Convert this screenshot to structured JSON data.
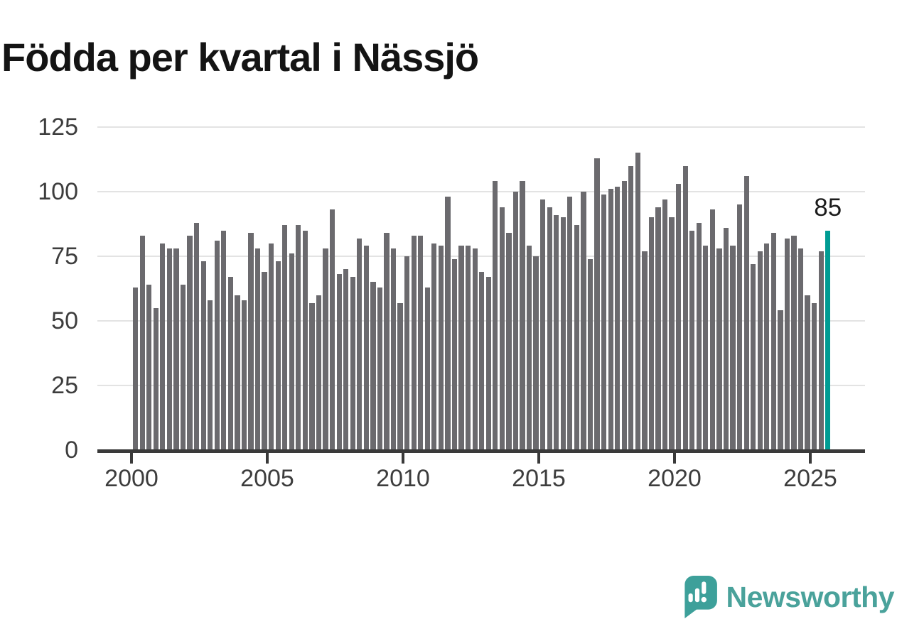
{
  "title": "Födda per kvartal i Nässjö",
  "chart_data": {
    "type": "bar",
    "title": "Födda per kvartal i Nässjö",
    "x_period_start": "2000 Q1",
    "x_period_end": "2025 Q3",
    "values": [
      63,
      83,
      64,
      55,
      80,
      78,
      78,
      64,
      83,
      88,
      73,
      58,
      81,
      85,
      67,
      60,
      58,
      84,
      78,
      69,
      80,
      73,
      87,
      76,
      87,
      85,
      57,
      60,
      78,
      93,
      68,
      70,
      67,
      82,
      79,
      65,
      63,
      84,
      78,
      57,
      75,
      83,
      83,
      63,
      80,
      79,
      98,
      74,
      79,
      79,
      78,
      69,
      67,
      104,
      94,
      84,
      100,
      104,
      79,
      75,
      97,
      94,
      91,
      90,
      98,
      87,
      100,
      74,
      113,
      99,
      101,
      102,
      104,
      110,
      115,
      77,
      90,
      94,
      97,
      90,
      103,
      110,
      85,
      88,
      79,
      93,
      78,
      86,
      79,
      95,
      106,
      72,
      77,
      80,
      84,
      54,
      82,
      83,
      78,
      60,
      57,
      77,
      85
    ],
    "highlight": {
      "index": 102,
      "label": "85",
      "color": "#009c93"
    },
    "bar_color": "#6b6a6e",
    "yticks": [
      0,
      25,
      50,
      75,
      100,
      125
    ],
    "xticks": [
      "2000",
      "2005",
      "2010",
      "2015",
      "2020",
      "2025"
    ],
    "ylim": [
      0,
      125
    ],
    "grid": "horizontal",
    "legend": "none"
  },
  "colors": {
    "background": "#ffffff",
    "title_text": "#141414",
    "axis_text": "#3d3d3d",
    "gridline": "#e3e3e3",
    "axis_line": "#3a3a3a",
    "bar": "#6b6a6e",
    "highlight": "#009c93",
    "brand_teal": "#4aa29b",
    "brand_icon": "#3da09a"
  },
  "branding": {
    "name": "Newsworthy",
    "icon": "bar-chart-speech-bubble-icon"
  }
}
